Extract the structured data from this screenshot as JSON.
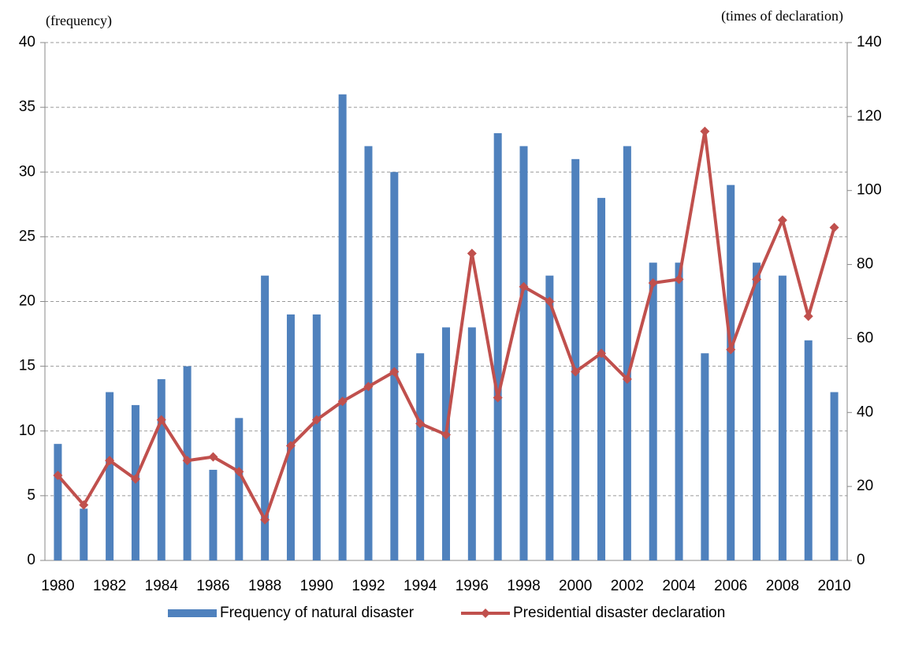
{
  "chart_data": {
    "type": "bar-line",
    "y_label": "(frequency)",
    "y2_label": "(times of declaration)",
    "categories": [
      "1980",
      null,
      "1982",
      null,
      "1984",
      null,
      "1986",
      null,
      "1988",
      null,
      "1990",
      null,
      "1992",
      null,
      "1994",
      null,
      "1996",
      null,
      "1998",
      null,
      "2000",
      null,
      "2002",
      null,
      "2004",
      null,
      "2006",
      null,
      "2008",
      null,
      "2010"
    ],
    "series": [
      {
        "name": "Frequency of natural disaster",
        "type": "bar",
        "color": "#4f81bd",
        "axis": "y",
        "values": [
          9,
          4,
          13,
          12,
          14,
          15,
          7,
          11,
          22,
          19,
          19,
          36,
          32,
          30,
          16,
          18,
          18,
          33,
          32,
          22,
          31,
          28,
          32,
          23,
          23,
          16,
          29,
          23,
          22,
          17,
          13
        ]
      },
      {
        "name": "Presidential disaster declaration",
        "type": "line",
        "color": "#c0504d",
        "axis": "y2",
        "values": [
          23,
          15,
          27,
          22,
          38,
          27,
          28,
          24,
          11,
          31,
          38,
          43,
          47,
          51,
          37,
          34,
          83,
          44,
          74,
          70,
          51,
          56,
          49,
          75,
          76,
          116,
          57,
          76,
          92,
          66,
          90
        ]
      }
    ],
    "ylim": [
      0,
      40
    ],
    "yticks": [
      0,
      5,
      10,
      15,
      20,
      25,
      30,
      35,
      40
    ],
    "y2lim": [
      0,
      140
    ],
    "y2ticks": [
      0,
      20,
      40,
      60,
      80,
      100,
      120,
      140
    ],
    "grid": true,
    "legend": "bottom"
  }
}
